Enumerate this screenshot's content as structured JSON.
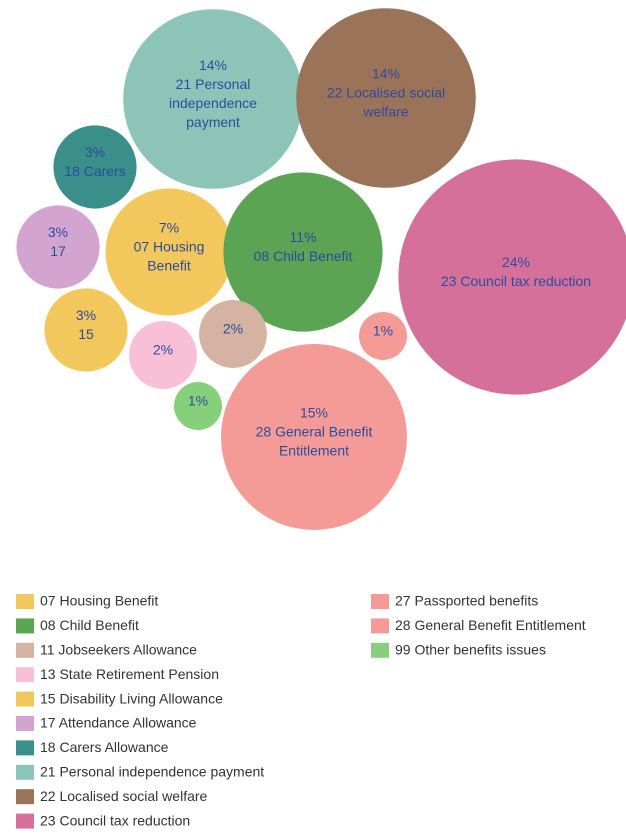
{
  "chart_data": {
    "type": "bubble",
    "series": [
      {
        "name": "07 Housing Benefit",
        "color": "#f2c75c",
        "value": 7,
        "value_label": "7%",
        "label_lines": [
          "07 Housing",
          "Benefit"
        ]
      },
      {
        "name": "08 Child Benefit",
        "color": "#5aa454",
        "value": 11,
        "value_label": "11%",
        "label_lines": [
          "08 Child Benefit"
        ]
      },
      {
        "name": "11 Jobseekers Allowance",
        "color": "#d5b3a3",
        "value": 2,
        "value_label": "2%",
        "label_lines": []
      },
      {
        "name": "13 State Retirement Pension",
        "color": "#f9bfd6",
        "value": 2,
        "value_label": "2%",
        "label_lines": []
      },
      {
        "name": "15 Disability Living Allowance",
        "color": "#f2c75c",
        "value": 3,
        "value_label": "3%",
        "label_lines": [
          "15"
        ]
      },
      {
        "name": "17 Attendance Allowance",
        "color": "#d3a4d0",
        "value": 3,
        "value_label": "3%",
        "label_lines": [
          "17"
        ]
      },
      {
        "name": "18 Carers Allowance",
        "color": "#3a8f8a",
        "value": 3,
        "value_label": "3%",
        "label_lines": [
          "18 Carers"
        ]
      },
      {
        "name": "21 Personal independence payment",
        "color": "#8cc5b8",
        "value": 14,
        "value_label": "14%",
        "label_lines": [
          "21 Personal",
          "independence",
          "payment"
        ]
      },
      {
        "name": "22 Localised social welfare",
        "color": "#9b7359",
        "value": 14,
        "value_label": "14%",
        "label_lines": [
          "22 Localised social",
          "welfare"
        ]
      },
      {
        "name": "23 Council tax reduction",
        "color": "#d5709a",
        "value": 24,
        "value_label": "24%",
        "label_lines": [
          "23 Council tax reduction"
        ]
      },
      {
        "name": "27 Passported benefits",
        "color": "#f59b97",
        "value": 1,
        "value_label": "1%",
        "label_lines": []
      },
      {
        "name": "28 General Benefit Entitlement",
        "color": "#f59b97",
        "value": 15,
        "value_label": "15%",
        "label_lines": [
          "28 General Benefit",
          "Entitlement"
        ]
      },
      {
        "name": "99 Other benefits issues",
        "color": "#86d07b",
        "value": 1,
        "value_label": "1%",
        "label_lines": []
      }
    ]
  }
}
